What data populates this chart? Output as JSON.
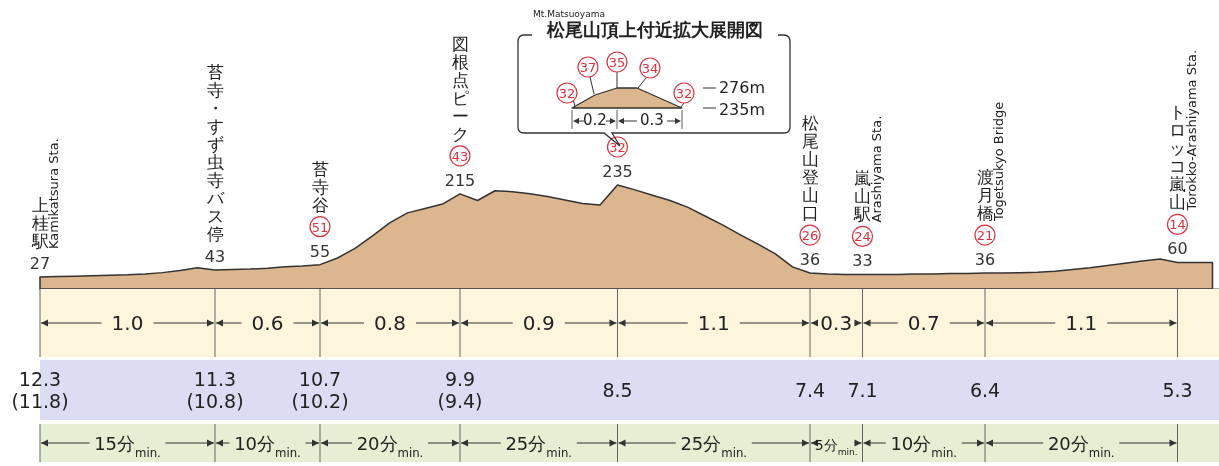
{
  "chart_data": [
    {
      "type": "area",
      "categories": [
        null,
        null,
        null,
        null,
        null,
        null,
        null,
        null,
        null,
        null,
        null,
        null,
        null,
        null,
        null,
        null,
        null,
        null,
        null,
        null,
        null,
        null,
        null,
        null,
        null,
        null,
        null,
        null,
        null,
        null,
        null,
        null,
        null,
        null,
        null,
        null,
        null,
        null,
        null,
        null,
        null,
        null,
        null,
        null,
        null,
        null,
        null,
        null,
        null,
        null,
        null,
        null,
        null,
        null,
        null,
        null,
        null,
        null,
        null,
        null,
        null,
        null,
        null,
        null,
        null,
        null,
        null,
        null
      ],
      "series": [
        {
          "type": "area",
          "color": "#dcb68e",
          "values": [
            27,
            28,
            29,
            30,
            31,
            32,
            34,
            37,
            42,
            48,
            43,
            44,
            45,
            47,
            50,
            52,
            55,
            70,
            92,
            120,
            150,
            172,
            182,
            192,
            215,
            200,
            222,
            220,
            215,
            209,
            201,
            193,
            190,
            235,
            224,
            212,
            200,
            185,
            165,
            145,
            123,
            102,
            80,
            50,
            36,
            34,
            33,
            33,
            33,
            33,
            34,
            34,
            35,
            35,
            36,
            36,
            37,
            38,
            40,
            44,
            48,
            53,
            58,
            63,
            68,
            60,
            60,
            60
          ],
          "value_labels": [
            "27",
            null,
            null,
            null,
            null,
            null,
            null,
            null,
            null,
            null,
            "43",
            null,
            null,
            null,
            null,
            null,
            "55",
            null,
            null,
            null,
            null,
            null,
            null,
            null,
            "215",
            null,
            null,
            null,
            null,
            null,
            null,
            null,
            null,
            "235",
            null,
            null,
            null,
            null,
            null,
            null,
            null,
            null,
            null,
            null,
            "36",
            null,
            null,
            "33",
            null,
            null,
            null,
            null,
            null,
            null,
            "36",
            null,
            null,
            null,
            null,
            null,
            null,
            null,
            null,
            null,
            null,
            "60",
            null,
            null
          ]
        }
      ],
      "tick_labels": false,
      "annotations": [
        "上桂駅",
        "Kamikatsura Sta.",
        "苔寺・すず虫寺バス停",
        "51",
        "苔寺谷",
        "43",
        "図根点ピーク",
        "32",
        "26",
        "松尾山登山口",
        "24",
        "嵐山駅",
        "Arashiyama Sta.",
        "21",
        "渡月橋",
        "Togetsukyo Bridge",
        "14",
        "トロッコ嵐山",
        "Torokko-Arashiyama Sta."
      ]
    },
    {
      "type": "other",
      "title": "松尾山頂上付近拡大展開図",
      "subtitle": "Mt.Matsuoyama",
      "annotations": [
        "32",
        "37",
        "35",
        "34",
        "32",
        "276m",
        "235m",
        "0.2",
        "0.3"
      ]
    },
    {
      "type": "bar",
      "orientation": "horizontal",
      "stacked": true,
      "categories": [
        null
      ],
      "tick_labels": false,
      "series": [
        {
          "color": "#fdf6dc",
          "values": [
            1.0
          ],
          "value_labels": [
            "1.0"
          ]
        },
        {
          "color": "#fdf6dc",
          "values": [
            0.6
          ],
          "value_labels": [
            "0.6"
          ]
        },
        {
          "color": "#fdf6dc",
          "values": [
            0.8
          ],
          "value_labels": [
            "0.8"
          ]
        },
        {
          "color": "#fdf6dc",
          "values": [
            0.9
          ],
          "value_labels": [
            "0.9"
          ]
        },
        {
          "color": "#fdf6dc",
          "values": [
            1.1
          ],
          "value_labels": [
            "1.1"
          ]
        },
        {
          "color": "#fdf6dc",
          "values": [
            0.3
          ],
          "value_labels": [
            "0.3"
          ]
        },
        {
          "color": "#fdf6dc",
          "values": [
            0.7
          ],
          "value_labels": [
            "0.7"
          ]
        },
        {
          "color": "#fdf6dc",
          "values": [
            1.1
          ],
          "value_labels": [
            "1.1"
          ]
        }
      ],
      "annotations": [
        "12.3\n(11.8)",
        "11.3\n(10.8)",
        "10.7\n(10.2)",
        "9.9\n(9.4)",
        "8.5",
        "7.4",
        "7.1",
        "6.4",
        "5.3"
      ]
    },
    {
      "type": "other",
      "annotations": [
        "15分$_{min.}$",
        "10分$_{min.}$",
        "20分$_{min.}$",
        "25分$_{min.}$",
        "25分$_{min.}$",
        "5分$_{min.}$",
        "10分$_{min.}$",
        "20分$_{min.}$"
      ]
    }
  ]
}
